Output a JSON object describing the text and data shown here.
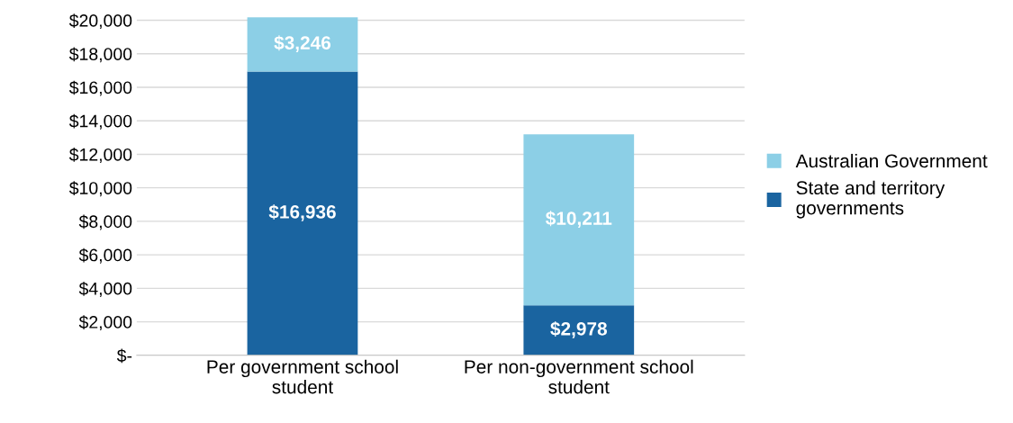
{
  "chart_data": {
    "type": "bar",
    "stacked": true,
    "categories": [
      "Per government school\nstudent",
      "Per non-government school\nstudent"
    ],
    "series": [
      {
        "name": "State and territory governments",
        "color": "#1a64a0",
        "values": [
          16936,
          2978
        ],
        "value_labels": [
          "$16,936",
          "$2,978"
        ]
      },
      {
        "name": "Australian Government",
        "color": "#8ccfe6",
        "values": [
          3246,
          10211
        ],
        "value_labels": [
          "$3,246",
          "$10,211"
        ]
      }
    ],
    "ylim": [
      0,
      20200
    ],
    "yticks": [
      {
        "value": 0,
        "label": "$-"
      },
      {
        "value": 2000,
        "label": "$2,000"
      },
      {
        "value": 4000,
        "label": "$4,000"
      },
      {
        "value": 6000,
        "label": "$6,000"
      },
      {
        "value": 8000,
        "label": "$8,000"
      },
      {
        "value": 10000,
        "label": "$10,000"
      },
      {
        "value": 12000,
        "label": "$12,000"
      },
      {
        "value": 14000,
        "label": "$14,000"
      },
      {
        "value": 16000,
        "label": "$16,000"
      },
      {
        "value": 18000,
        "label": "$18,000"
      },
      {
        "value": 20000,
        "label": "$20,000"
      }
    ],
    "grid": "y",
    "legend": "right"
  }
}
